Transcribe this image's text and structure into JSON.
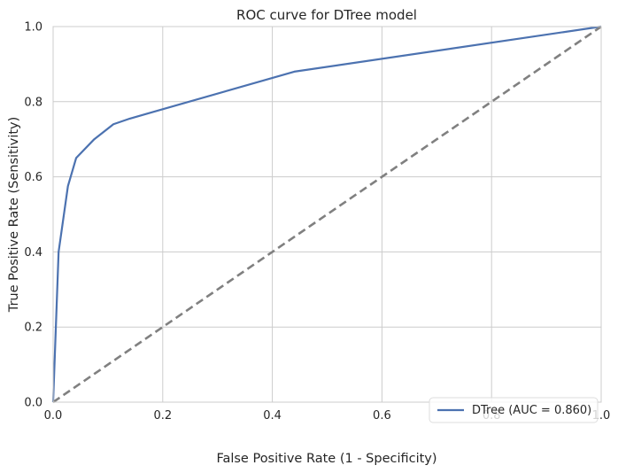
{
  "chart_data": {
    "type": "line",
    "title": "ROC curve for DTree model",
    "xlabel": "False Positive Rate (1 - Specificity)",
    "ylabel": "True Positive Rate (Sensitivity)",
    "xlim": [
      0,
      1
    ],
    "ylim": [
      0,
      1
    ],
    "xticks": [
      "0.0",
      "0.2",
      "0.4",
      "0.6",
      "0.8",
      "1.0"
    ],
    "yticks": [
      "0.0",
      "0.2",
      "0.4",
      "0.6",
      "0.8",
      "1.0"
    ],
    "grid": true,
    "legend_position": "lower-right",
    "series": [
      {
        "name": "DTree (AUC = 0.860)",
        "color": "#4C72B0",
        "x": [
          0.0,
          0.01,
          0.027,
          0.042,
          0.075,
          0.11,
          0.14,
          0.44,
          1.0
        ],
        "y": [
          0.0,
          0.4,
          0.575,
          0.65,
          0.7,
          0.74,
          0.755,
          0.88,
          1.0
        ]
      },
      {
        "name": "",
        "color": "#808080",
        "style": "dashed",
        "x": [
          0,
          1
        ],
        "y": [
          0,
          1
        ]
      }
    ]
  }
}
